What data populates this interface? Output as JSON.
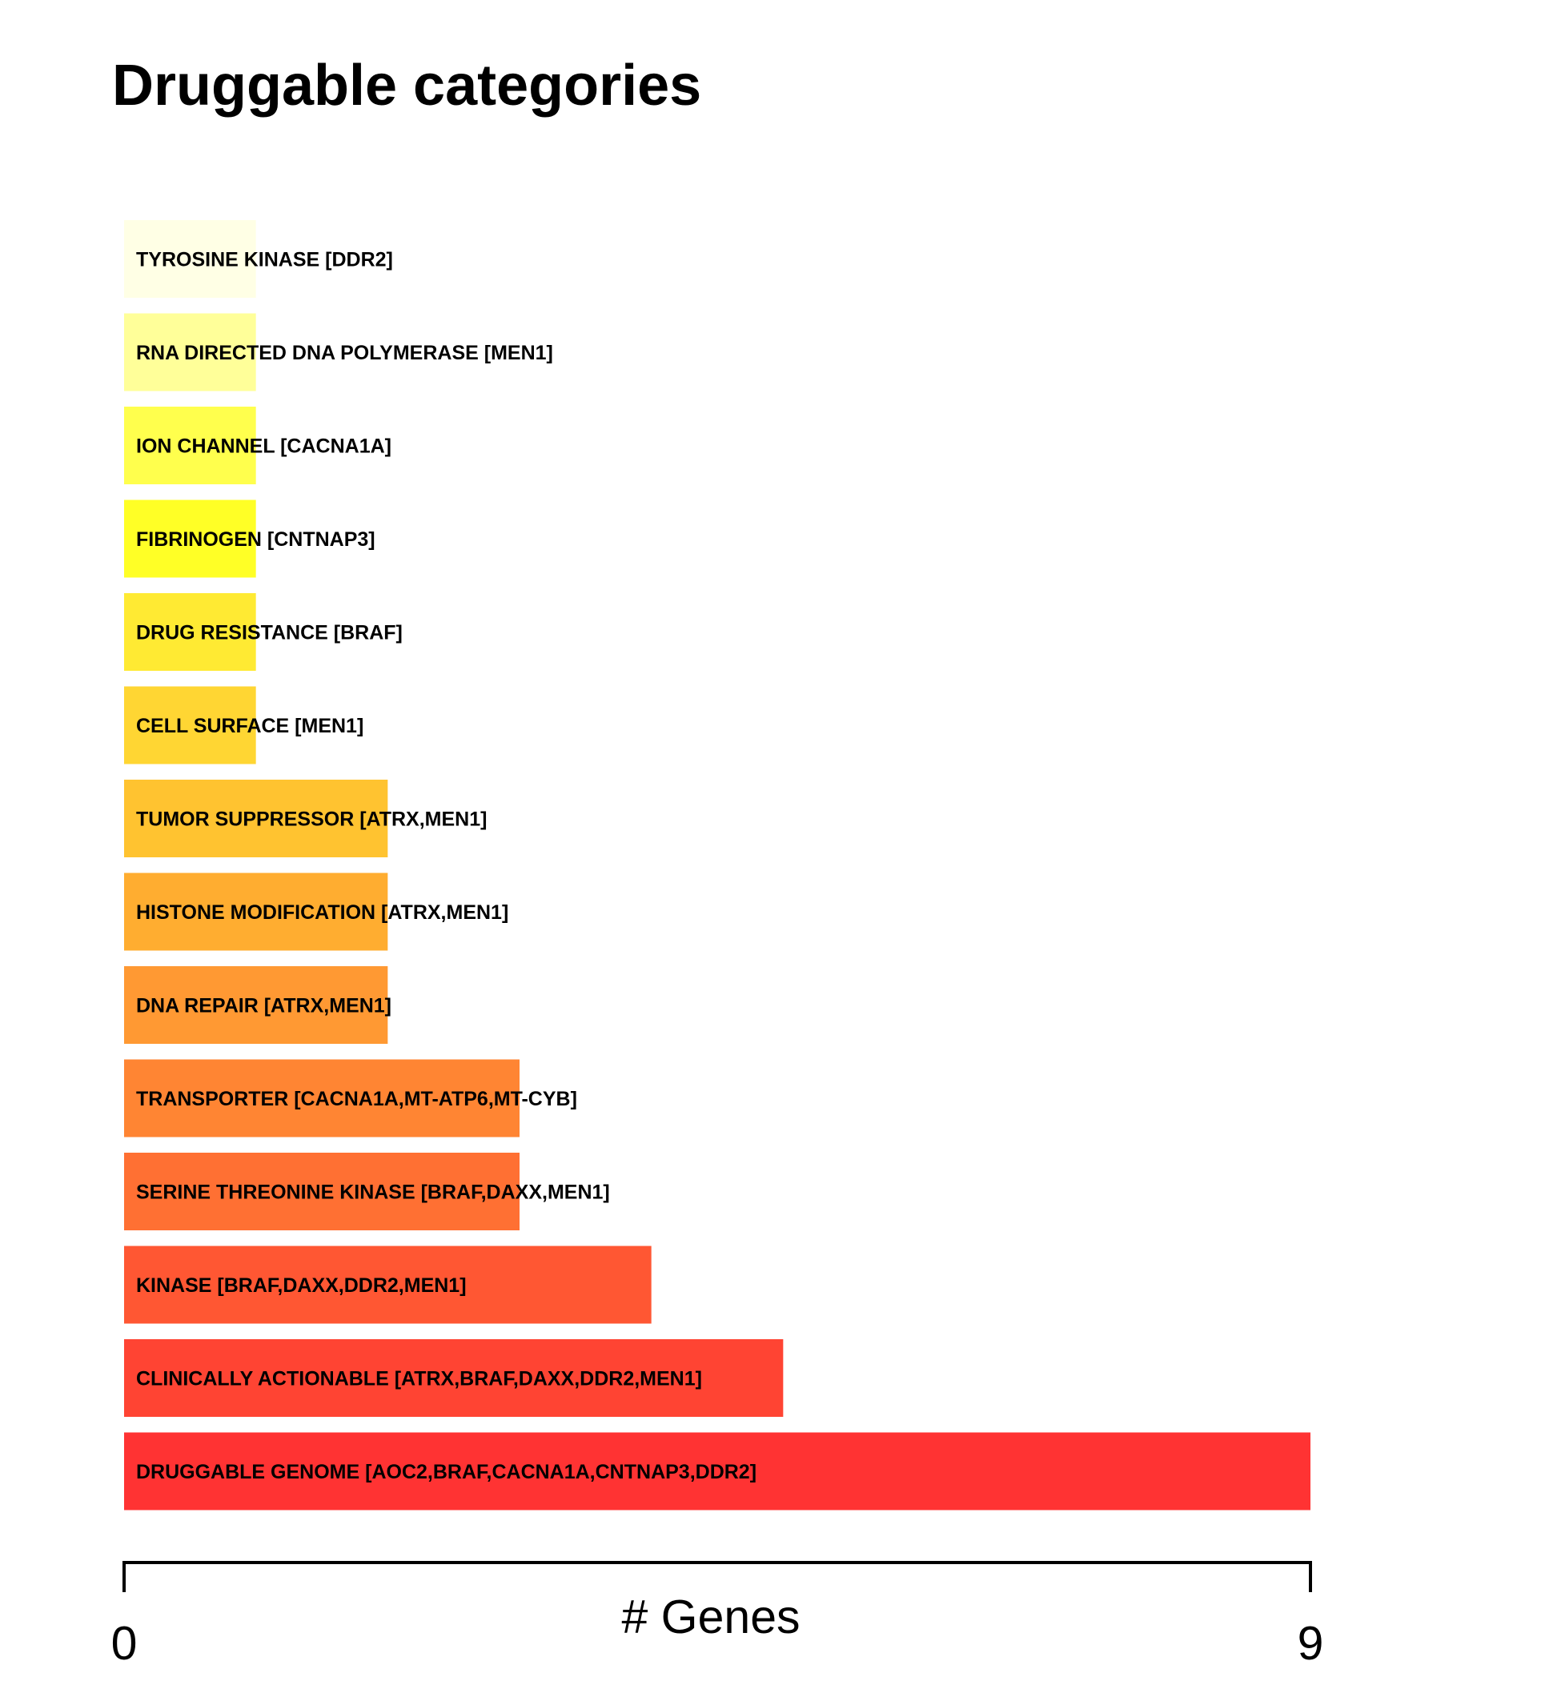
{
  "chart_data": {
    "type": "bar",
    "orientation": "horizontal",
    "title": "Druggable categories",
    "xlabel": "# Genes",
    "ylabel": "",
    "xlim": [
      0,
      9
    ],
    "x_ticks": [
      "0",
      "9"
    ],
    "grid": false,
    "legend": "none",
    "categories": [
      "TYROSINE KINASE [DDR2]",
      "RNA DIRECTED DNA POLYMERASE [MEN1]",
      "ION CHANNEL [CACNA1A]",
      "FIBRINOGEN [CNTNAP3]",
      "DRUG RESISTANCE [BRAF]",
      "CELL SURFACE [MEN1]",
      "TUMOR SUPPRESSOR [ATRX,MEN1]",
      "HISTONE MODIFICATION [ATRX,MEN1]",
      "DNA REPAIR [ATRX,MEN1]",
      "TRANSPORTER [CACNA1A,MT-ATP6,MT-CYB]",
      "SERINE THREONINE KINASE [BRAF,DAXX,MEN1]",
      "KINASE [BRAF,DAXX,DDR2,MEN1]",
      "CLINICALLY ACTIONABLE [ATRX,BRAF,DAXX,DDR2,MEN1]",
      "DRUGGABLE GENOME [AOC2,BRAF,CACNA1A,CNTNAP3,DDR2]"
    ],
    "values": [
      1,
      1,
      1,
      1,
      1,
      1,
      2,
      2,
      2,
      3,
      3,
      4,
      5,
      9
    ],
    "colors": [
      "#FFFFE5",
      "#FFFF99",
      "#FFFF4D",
      "#FFFF26",
      "#FFEA33",
      "#FFD633",
      "#FFC330",
      "#FFAD30",
      "#FF9933",
      "#FF8533",
      "#FF7033",
      "#FF5733",
      "#FF4433",
      "#FF3333"
    ]
  }
}
